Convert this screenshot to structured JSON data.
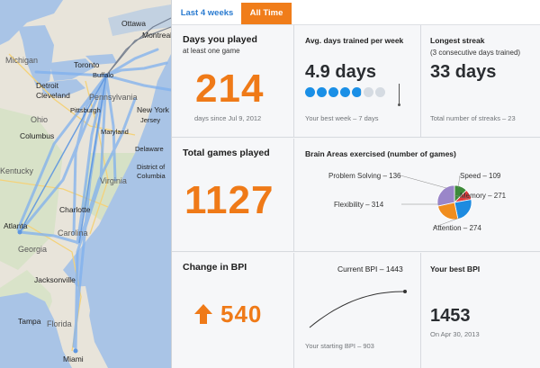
{
  "map": {
    "labels": [
      {
        "text": "Ottawa",
        "cls": ""
      },
      {
        "text": "Montreal",
        "cls": ""
      },
      {
        "text": "Toronto",
        "cls": ""
      },
      {
        "text": "Buffalo",
        "cls": "small"
      },
      {
        "text": "Michigan",
        "cls": "state"
      },
      {
        "text": "Detroit",
        "cls": ""
      },
      {
        "text": "Cleveland",
        "cls": ""
      },
      {
        "text": "Ohio",
        "cls": "state"
      },
      {
        "text": "Columbus",
        "cls": ""
      },
      {
        "text": "Pittsburgh",
        "cls": "small"
      },
      {
        "text": "Pennsylvania",
        "cls": "state"
      },
      {
        "text": "New York",
        "cls": ""
      },
      {
        "text": "Maryland",
        "cls": "small"
      },
      {
        "text": "Jersey",
        "cls": "small"
      },
      {
        "text": "Delaware",
        "cls": "small"
      },
      {
        "text": "Virginia",
        "cls": "state"
      },
      {
        "text": "District of",
        "cls": "small"
      },
      {
        "text": "Columbia",
        "cls": "small"
      },
      {
        "text": "Kentucky",
        "cls": "state"
      },
      {
        "text": "Charlotte",
        "cls": ""
      },
      {
        "text": "Carolina",
        "cls": "state"
      },
      {
        "text": "Atlanta",
        "cls": ""
      },
      {
        "text": "Georgia",
        "cls": "state"
      },
      {
        "text": "Jacksonville",
        "cls": ""
      },
      {
        "text": "Tampa",
        "cls": ""
      },
      {
        "text": "Florida",
        "cls": "state"
      },
      {
        "text": "Miami",
        "cls": ""
      }
    ]
  },
  "tabs": {
    "last4": "Last 4 weeks",
    "alltime": "All Time"
  },
  "days_played": {
    "title": "Days you played",
    "subtitle": "at least one game",
    "value": "214",
    "note": "days since Jul 9, 2012"
  },
  "avg_days": {
    "title": "Avg. days trained per week",
    "value": "4.9 days",
    "note": "Your best week – 7 days",
    "filled": 4.9,
    "total": 7,
    "colors": {
      "filled": "#1a8fe6",
      "empty": "#d5dbe2"
    }
  },
  "streak": {
    "title": "Longest streak",
    "subtitle": "(3 consecutive days trained)",
    "value": "33 days",
    "note": "Total number of streaks – 23"
  },
  "games": {
    "title": "Total games played",
    "value": "1127"
  },
  "brain": {
    "title": "Brain Areas exercised (number of games)",
    "areas": [
      {
        "name": "Problem Solving",
        "value": 136,
        "color": "#3d8a3a",
        "label": "Problem Solving – 136"
      },
      {
        "name": "Speed",
        "value": 109,
        "color": "#e23b3b",
        "label": "Speed – 109"
      },
      {
        "name": "Memory",
        "value": 271,
        "color": "#1e8be0",
        "label": "Memory – 271"
      },
      {
        "name": "Attention",
        "value": 274,
        "color": "#f08d1e",
        "label": "Attention – 274"
      },
      {
        "name": "Flexibility",
        "value": 314,
        "color": "#9a86c9",
        "label": "Flexibility – 314"
      }
    ]
  },
  "bpi": {
    "title": "Change in BPI",
    "change": "540",
    "current_label": "Current BPI – 1443",
    "starting_label": "Your starting BPI – 903",
    "start": 903,
    "current": 1443,
    "best_title": "Your best BPI",
    "best_value": "1453",
    "best_date": "On Apr 30, 2013",
    "colors": {
      "arrow": "#ef7a18"
    }
  }
}
